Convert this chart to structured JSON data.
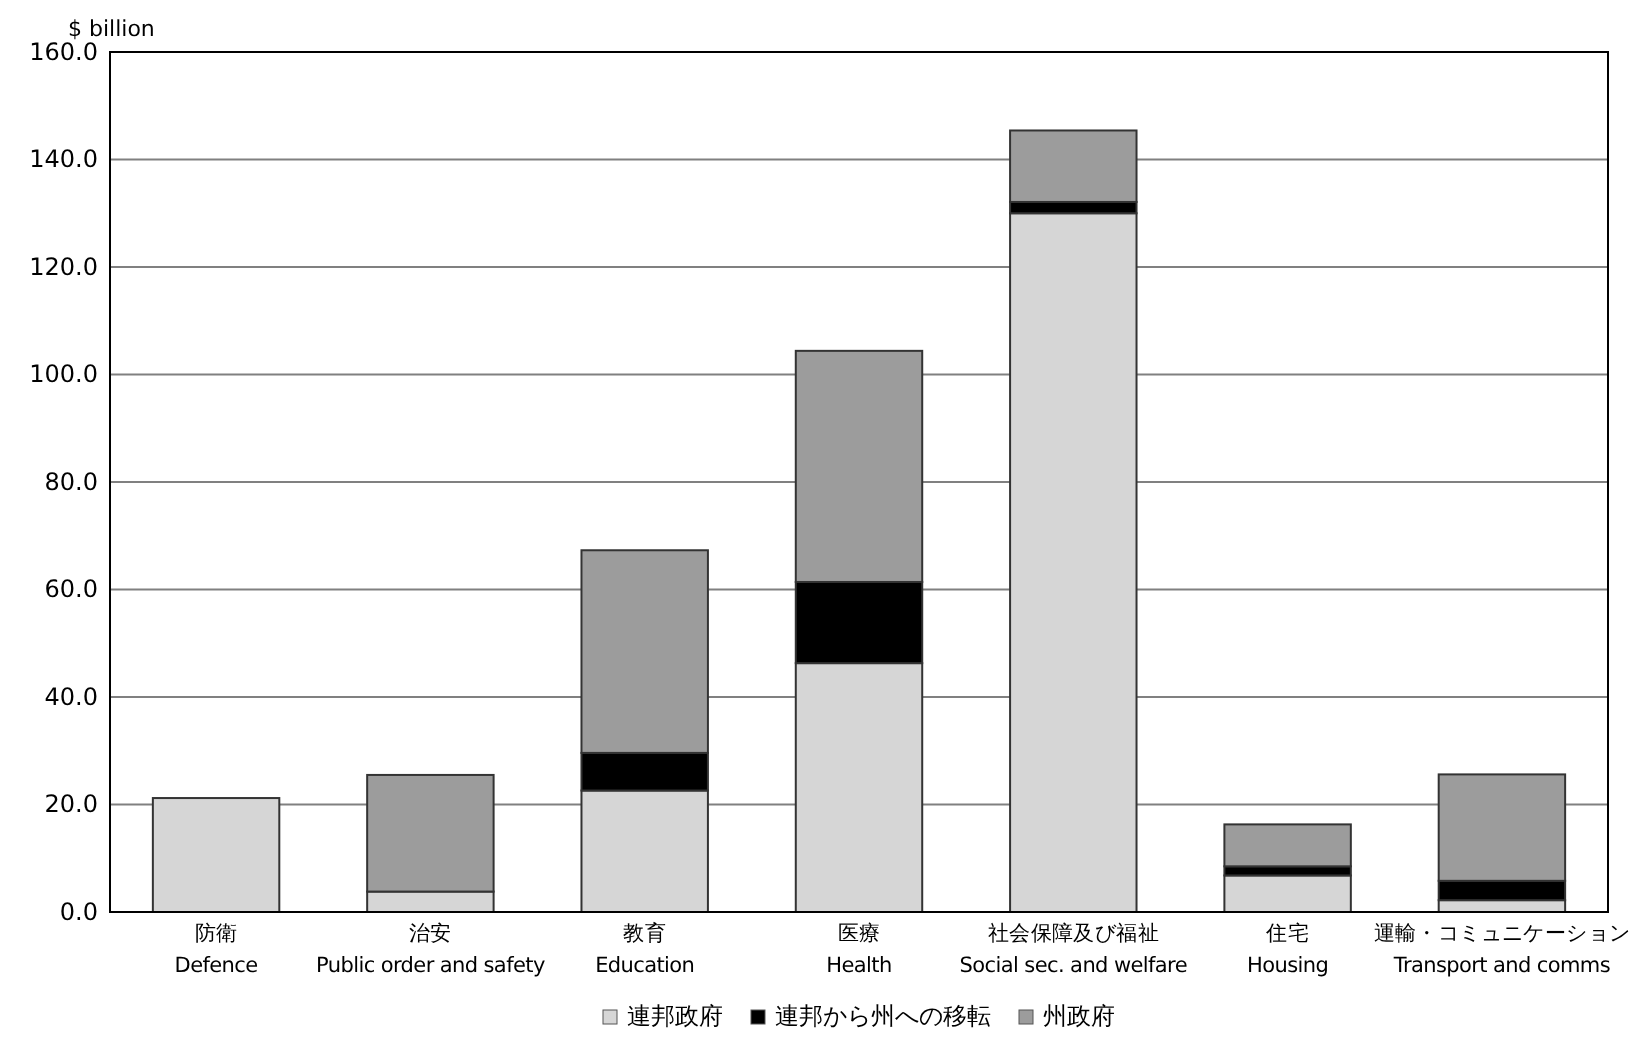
{
  "chart_data": {
    "type": "bar",
    "stacked": true,
    "ylabel": "$ billion",
    "categories": [
      "防衛\nDefence",
      "治安\nPublic order and safety",
      "教育\nEducation",
      "医療\nHealth",
      "社会保障及び福祉\nSocial sec. and welfare",
      "住宅\nHousing",
      "運輸・コミュニケーション\nTransport and comms"
    ],
    "series": [
      {
        "name": "連邦政府",
        "color": "#d6d6d6",
        "values": [
          21.2,
          3.8,
          22.6,
          46.3,
          130.0,
          6.8,
          2.2
        ]
      },
      {
        "name": "連邦から州への移転",
        "color": "#000000",
        "values": [
          0,
          0,
          7.0,
          15.1,
          2.1,
          1.7,
          3.6
        ]
      },
      {
        "name": "州政府",
        "color": "#9c9c9c",
        "values": [
          0,
          21.7,
          37.7,
          43.0,
          13.3,
          7.8,
          19.8
        ]
      }
    ],
    "ylim": [
      0,
      160
    ],
    "yticks": [
      {
        "value": 0,
        "label": "0.0"
      },
      {
        "value": 20,
        "label": "20.0"
      },
      {
        "value": 40,
        "label": "40.0"
      },
      {
        "value": 60,
        "label": "60.0"
      },
      {
        "value": 80,
        "label": "80.0"
      },
      {
        "value": 100,
        "label": "100.0"
      },
      {
        "value": 120,
        "label": "120.0"
      },
      {
        "value": 140,
        "label": "140.0"
      },
      {
        "value": 160,
        "label": "160.0"
      }
    ],
    "grid": "y",
    "legend": "bottom"
  }
}
